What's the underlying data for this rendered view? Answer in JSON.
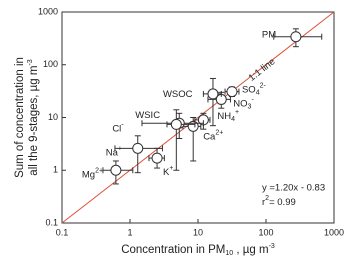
{
  "chart_data": {
    "type": "scatter",
    "x_label": [
      {
        "text": "Concentration in PM"
      },
      {
        "text": "10",
        "shift": "sub"
      },
      {
        "text": " , µg m"
      },
      {
        "text": "-3",
        "shift": "sup"
      }
    ],
    "y_label": [
      [
        {
          "text": "Sum of concentration in"
        }
      ],
      [
        {
          "text": "all the 9-stages, µg m"
        },
        {
          "text": "-3",
          "shift": "sup"
        }
      ]
    ],
    "xscale": "log",
    "yscale": "log",
    "xlim": [
      0.1,
      1000
    ],
    "ylim": [
      0.1,
      1000
    ],
    "xticks": [
      0.1,
      1,
      10,
      100,
      1000
    ],
    "yticks": [
      0.1,
      1,
      10,
      100,
      1000
    ],
    "reference_line": {
      "label": "1:1 line",
      "color": "#e0503c"
    },
    "equation": "y =1.20x - 0.83",
    "r2": [
      {
        "text": "r"
      },
      {
        "text": "2",
        "shift": "sup"
      },
      {
        "text": "= 0.99"
      }
    ],
    "points": [
      {
        "label": [
          {
            "text": "PM"
          }
        ],
        "x": 275,
        "y": 340,
        "x_low": 130,
        "x_high": 660,
        "y_low": 220,
        "y_high": 480
      },
      {
        "label": [
          {
            "text": "SO"
          },
          {
            "text": "4",
            "shift": "sub"
          },
          {
            "text": "2-",
            "shift": "sup"
          }
        ],
        "x": 31.6,
        "y": 31,
        "x_low": 25,
        "x_high": 40,
        "y_low": 25,
        "y_high": 38
      },
      {
        "label": [
          {
            "text": "NO"
          },
          {
            "text": "3",
            "shift": "sub"
          },
          {
            "text": "-",
            "shift": "sup"
          }
        ],
        "x": 22,
        "y": 22,
        "x_low": 14,
        "x_high": 30,
        "y_low": 15,
        "y_high": 30
      },
      {
        "label": [
          {
            "text": "WSOC"
          }
        ],
        "x": 16.6,
        "y": 28,
        "x_low": 12,
        "x_high": 22,
        "y_low": 7,
        "y_high": 55
      },
      {
        "label": [
          {
            "text": "NH"
          },
          {
            "text": "4",
            "shift": "sub"
          },
          {
            "text": "+",
            "shift": "sup"
          }
        ],
        "x": 12,
        "y": 9,
        "x_low": 9,
        "x_high": 15,
        "y_low": 6,
        "y_high": 12
      },
      {
        "label": [
          {
            "text": "Ca"
          },
          {
            "text": "2+",
            "shift": "sup"
          }
        ],
        "x": 8.5,
        "y": 6.8,
        "x_low": 6,
        "x_high": 11,
        "y_low": 1.5,
        "y_high": 10
      },
      {
        "label": [
          {
            "text": "WSIC"
          }
        ],
        "x": 5.3,
        "y": 7.8,
        "x_low": 1.5,
        "x_high": 12,
        "y_low": 4,
        "y_high": 12
      },
      {
        "label": [
          {
            "text": "Cl"
          },
          {
            "text": "-",
            "shift": "sup"
          }
        ],
        "x": 4.8,
        "y": 7.4,
        "x_low": 3.5,
        "x_high": 9,
        "y_low": 1,
        "y_high": 14
      },
      {
        "label": [
          {
            "text": "Na"
          },
          {
            "text": "+",
            "shift": "sup"
          }
        ],
        "x": 1.3,
        "y": 2.6,
        "x_low": 0.6,
        "x_high": 3,
        "y_low": 0.9,
        "y_high": 4.5
      },
      {
        "label": [
          {
            "text": "K"
          },
          {
            "text": "+",
            "shift": "sup"
          }
        ],
        "x": 2.5,
        "y": 1.7,
        "x_low": 1.9,
        "x_high": 3.2,
        "y_low": 1.1,
        "y_high": 2.6
      },
      {
        "label": [
          {
            "text": "Mg"
          },
          {
            "text": "2+",
            "shift": "sup"
          }
        ],
        "x": 0.62,
        "y": 1.0,
        "x_low": 0.4,
        "x_high": 1.1,
        "y_low": 0.55,
        "y_high": 1.5
      }
    ]
  }
}
